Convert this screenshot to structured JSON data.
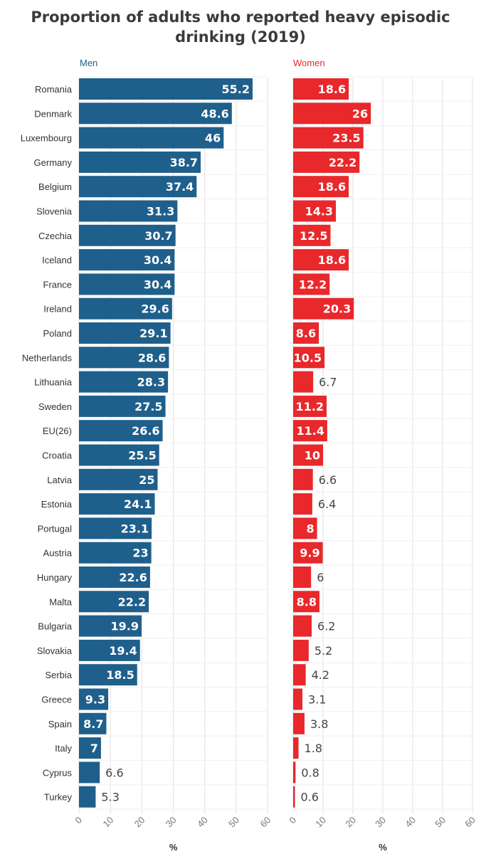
{
  "chart_data": {
    "type": "bar",
    "orientation": "horizontal",
    "title": "Proportion of adults who reported heavy episodic drinking (2019)",
    "categories": [
      "Romania",
      "Denmark",
      "Luxembourg",
      "Germany",
      "Belgium",
      "Slovenia",
      "Czechia",
      "Iceland",
      "France",
      "Ireland",
      "Poland",
      "Netherlands",
      "Lithuania",
      "Sweden",
      "EU(26)",
      "Croatia",
      "Latvia",
      "Estonia",
      "Portugal",
      "Austria",
      "Hungary",
      "Malta",
      "Bulgaria",
      "Slovakia",
      "Serbia",
      "Greece",
      "Spain",
      "Italy",
      "Cyprus",
      "Turkey"
    ],
    "series": [
      {
        "name": "Men",
        "color": "#1f5f8b",
        "values": [
          55.2,
          48.6,
          46,
          38.7,
          37.4,
          31.3,
          30.7,
          30.4,
          30.4,
          29.6,
          29.1,
          28.6,
          28.3,
          27.5,
          26.6,
          25.5,
          25,
          24.1,
          23.1,
          23,
          22.6,
          22.2,
          19.9,
          19.4,
          18.5,
          9.3,
          8.7,
          7,
          6.6,
          5.3
        ]
      },
      {
        "name": "Women",
        "color": "#e8282b",
        "values": [
          18.6,
          26,
          23.5,
          22.2,
          18.6,
          14.3,
          12.5,
          18.6,
          12.2,
          20.3,
          8.6,
          10.5,
          6.7,
          11.2,
          11.4,
          10,
          6.6,
          6.4,
          8,
          9.9,
          6,
          8.8,
          6.2,
          5.2,
          4.2,
          3.1,
          3.8,
          1.8,
          0.8,
          0.6
        ]
      }
    ],
    "xlabel": "%",
    "xlim": [
      0,
      60
    ],
    "xticks": [
      0,
      10,
      20,
      30,
      40,
      50,
      60
    ],
    "grid": true,
    "legend": "panel-titles"
  }
}
